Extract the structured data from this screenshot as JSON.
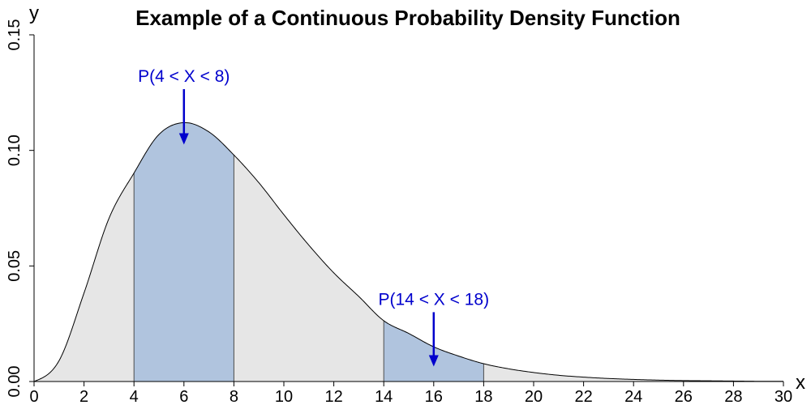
{
  "chart_data": {
    "type": "area",
    "title": "Example of a Continuous Probability Density Function",
    "xlabel": "x",
    "ylabel": "y",
    "xlim": [
      0,
      30
    ],
    "ylim": [
      0,
      0.15
    ],
    "x_ticks": [
      0,
      2,
      4,
      6,
      8,
      10,
      12,
      14,
      16,
      18,
      20,
      22,
      24,
      26,
      28,
      30
    ],
    "y_ticks": [
      "0.00",
      "0.05",
      "0.10",
      "0.15"
    ],
    "grid": false,
    "series": [
      {
        "x": [
          0,
          1,
          2,
          3,
          4,
          5,
          6,
          7,
          8,
          9,
          10,
          11,
          12,
          13,
          14,
          15,
          16,
          17,
          18,
          19,
          20,
          21,
          22,
          23,
          24,
          25,
          26,
          27,
          28,
          29,
          30
        ],
        "values": [
          0,
          0.009,
          0.0383,
          0.0706,
          0.0902,
          0.1069,
          0.112,
          0.108,
          0.098,
          0.086,
          0.0722,
          0.059,
          0.047,
          0.0368,
          0.0263,
          0.0208,
          0.015,
          0.011,
          0.0077,
          0.0055,
          0.0039,
          0.0027,
          0.0019,
          0.0013,
          0.0009,
          0.0006,
          0.0004,
          0.0003,
          0.0002,
          0.0001,
          0.0001
        ]
      }
    ],
    "shaded_intervals": [
      {
        "from": 4,
        "to": 8,
        "color": "#b0c4de"
      },
      {
        "from": 14,
        "to": 18,
        "color": "#b0c4de"
      }
    ],
    "background_fill_color": "#e6e6e6",
    "annotations": [
      {
        "text": "P(4 < X < 8)",
        "arrow_x": 6,
        "arrow_from_y": 0.1265,
        "arrow_to_y": 0.1025,
        "color": "#0000cd"
      },
      {
        "text": "P(14 < X < 18)",
        "arrow_x": 16,
        "arrow_from_y": 0.03,
        "arrow_to_y": 0.0065,
        "color": "#0000cd"
      }
    ]
  }
}
